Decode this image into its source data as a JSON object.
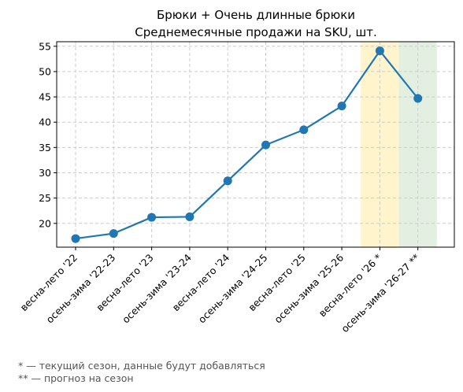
{
  "chart_data": {
    "type": "line",
    "title": "Брюки + Очень длинные брюки",
    "subtitle": "Среднемесячные продажи на SKU, шт.",
    "xlabel": "",
    "ylabel": "",
    "categories": [
      "весна-лето '22",
      "осень-зима '22-23",
      "весна-лето '23",
      "осень-зима '23-24",
      "весна-лето '24",
      "осень-зима '24-25",
      "весна-лето '25",
      "осень-зима '25-26",
      "весна-лето '26 *",
      "осень-зима '26-27 **"
    ],
    "series": [
      {
        "values": [
          17.0,
          18.0,
          21.2,
          21.3,
          28.4,
          35.5,
          38.5,
          43.2,
          54.1,
          44.7
        ]
      }
    ],
    "ylim": [
      15.3,
      55.9
    ],
    "yticks": [
      20,
      25,
      30,
      35,
      40,
      45,
      50,
      55
    ],
    "grid": true,
    "line_color": "#1f77b4",
    "highlight_bands": [
      {
        "category_index": 8,
        "color": "#fff4cc"
      },
      {
        "category_index": 9,
        "color": "#e3f0e1"
      }
    ]
  },
  "footnotes": [
    "* — текущий сезон, данные будут добавляться",
    "** — прогноз на сезон"
  ]
}
